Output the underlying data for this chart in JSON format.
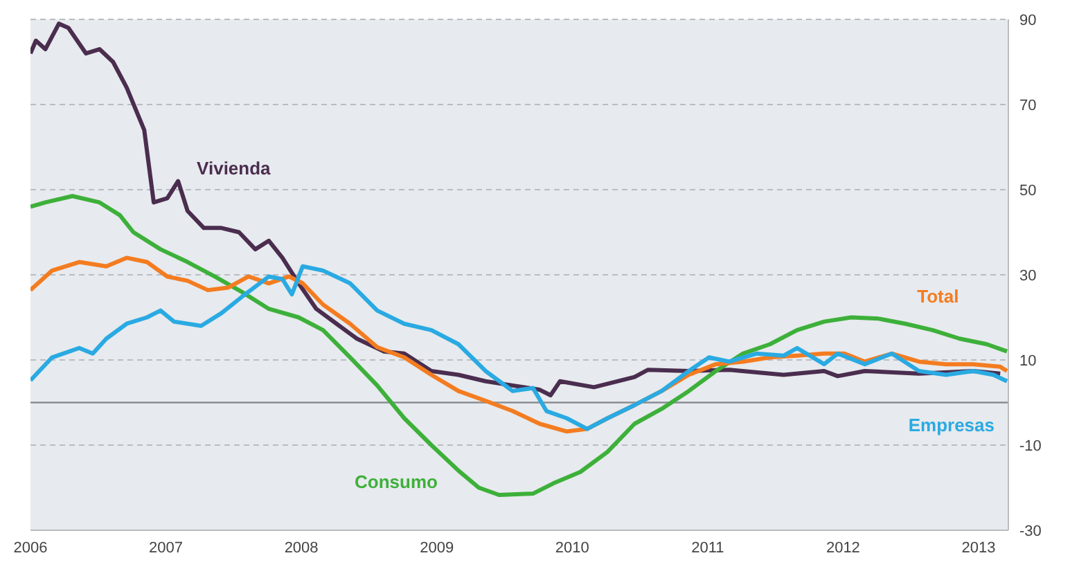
{
  "chart_data": {
    "type": "line",
    "xlim": [
      2006,
      2013.22
    ],
    "xticks": [
      2006,
      2007,
      2008,
      2009,
      2010,
      2011,
      2012,
      2013
    ],
    "ylim": [
      -30,
      90
    ],
    "yticks": [
      90,
      70,
      50,
      30,
      10,
      -10,
      -30
    ],
    "grid": "y",
    "legend": false,
    "marker": "none",
    "line_style": "solid",
    "ref_lines": [
      {
        "axis": "y",
        "value": 0
      }
    ],
    "series": [
      {
        "name": "Vivienda",
        "color": "#4a2d4f",
        "x": [
          2006,
          2006.04,
          2006.11,
          2006.21,
          2006.28,
          2006.41,
          2006.51,
          2006.61,
          2006.71,
          2006.84,
          2006.91,
          2007.01,
          2007.09,
          2007.16,
          2007.28,
          2007.41,
          2007.54,
          2007.66,
          2007.76,
          2007.86,
          2007.98,
          2008.11,
          2008.26,
          2008.41,
          2008.61,
          2008.76,
          2008.96,
          2009.16,
          2009.36,
          2009.56,
          2009.76,
          2009.84,
          2009.91,
          2010.16,
          2010.46,
          2010.56,
          2010.86,
          2011.16,
          2011.56,
          2011.86,
          2011.96,
          2012.16,
          2012.56,
          2012.96,
          2013.16
        ],
        "values": [
          82,
          85,
          83,
          89,
          88,
          82,
          83,
          80,
          74,
          64,
          47,
          48,
          52,
          45,
          41,
          41,
          40,
          36,
          38,
          34,
          28,
          22,
          18.5,
          15,
          12,
          11.5,
          7.4,
          6.5,
          5,
          4,
          3,
          1.7,
          5,
          3.6,
          6,
          7.7,
          7.4,
          7.7,
          6.5,
          7.4,
          6.2,
          7.4,
          6.8,
          7.4,
          6.8
        ]
      },
      {
        "name": "Consumo",
        "color": "#3db03a",
        "x": [
          2006,
          2006.11,
          2006.31,
          2006.51,
          2006.66,
          2006.76,
          2006.96,
          2007.16,
          2007.36,
          2007.56,
          2007.76,
          2007.98,
          2008.16,
          2008.36,
          2008.56,
          2008.76,
          2008.96,
          2009.16,
          2009.31,
          2009.46,
          2009.71,
          2009.86,
          2010.06,
          2010.26,
          2010.46,
          2010.66,
          2010.86,
          2011.06,
          2011.26,
          2011.46,
          2011.66,
          2011.86,
          2012.06,
          2012.26,
          2012.46,
          2012.66,
          2012.86,
          2013.06,
          2013.21
        ],
        "values": [
          46,
          47,
          48.5,
          47,
          44,
          40,
          36,
          33,
          29.6,
          26,
          22,
          20,
          17,
          10.6,
          4,
          -3.7,
          -10,
          -16,
          -20,
          -21.7,
          -21.4,
          -19,
          -16.3,
          -11.6,
          -5,
          -1.5,
          2.7,
          7.4,
          11.5,
          13.7,
          17,
          19,
          20,
          19.7,
          18.5,
          17,
          15,
          13.7,
          12
        ]
      },
      {
        "name": "Total",
        "color": "#f47c20",
        "x": [
          2006,
          2006.16,
          2006.36,
          2006.56,
          2006.71,
          2006.86,
          2007.01,
          2007.16,
          2007.31,
          2007.46,
          2007.61,
          2007.76,
          2007.91,
          2008.01,
          2008.16,
          2008.36,
          2008.56,
          2008.76,
          2008.96,
          2009.16,
          2009.36,
          2009.56,
          2009.76,
          2009.96,
          2010.11,
          2010.26,
          2010.46,
          2010.66,
          2010.86,
          2011.06,
          2011.26,
          2011.46,
          2011.66,
          2011.86,
          2012.01,
          2012.16,
          2012.36,
          2012.56,
          2012.76,
          2012.96,
          2013.16,
          2013.21
        ],
        "values": [
          26.4,
          31,
          33,
          32,
          34,
          33,
          29.6,
          28.6,
          26.4,
          27,
          29.6,
          28,
          29.6,
          28,
          23,
          18.5,
          13,
          10.6,
          6.5,
          2.7,
          0.4,
          -2,
          -5,
          -6.8,
          -6.2,
          -3.7,
          -0.6,
          2.7,
          6.5,
          9,
          9.6,
          10.6,
          11,
          11.5,
          11.5,
          9.6,
          11.5,
          9.6,
          9,
          9,
          8.4,
          7.4
        ]
      },
      {
        "name": "Empresas",
        "color": "#2aaae2",
        "x": [
          2006,
          2006.16,
          2006.36,
          2006.46,
          2006.56,
          2006.71,
          2006.86,
          2006.96,
          2007.06,
          2007.26,
          2007.41,
          2007.56,
          2007.76,
          2007.86,
          2007.93,
          2008.01,
          2008.16,
          2008.36,
          2008.56,
          2008.76,
          2008.96,
          2009.16,
          2009.36,
          2009.56,
          2009.71,
          2009.81,
          2009.96,
          2010.11,
          2010.26,
          2010.46,
          2010.66,
          2010.86,
          2011.01,
          2011.16,
          2011.36,
          2011.56,
          2011.66,
          2011.86,
          2011.96,
          2012.16,
          2012.36,
          2012.56,
          2012.76,
          2012.96,
          2013.11,
          2013.21
        ],
        "values": [
          5.2,
          10.6,
          12.8,
          11.5,
          15,
          18.5,
          20,
          21.6,
          19,
          18,
          21,
          24.8,
          29.6,
          29,
          25.4,
          32,
          31,
          28,
          21.6,
          18.5,
          17,
          13.7,
          7.4,
          2.7,
          3.4,
          -2,
          -3.7,
          -6.2,
          -3.7,
          -0.6,
          2.7,
          7.4,
          10.6,
          9.6,
          11.5,
          11,
          12.8,
          9,
          11.5,
          9,
          11.5,
          7.4,
          6.5,
          7.4,
          6.5,
          5
        ]
      }
    ]
  }
}
